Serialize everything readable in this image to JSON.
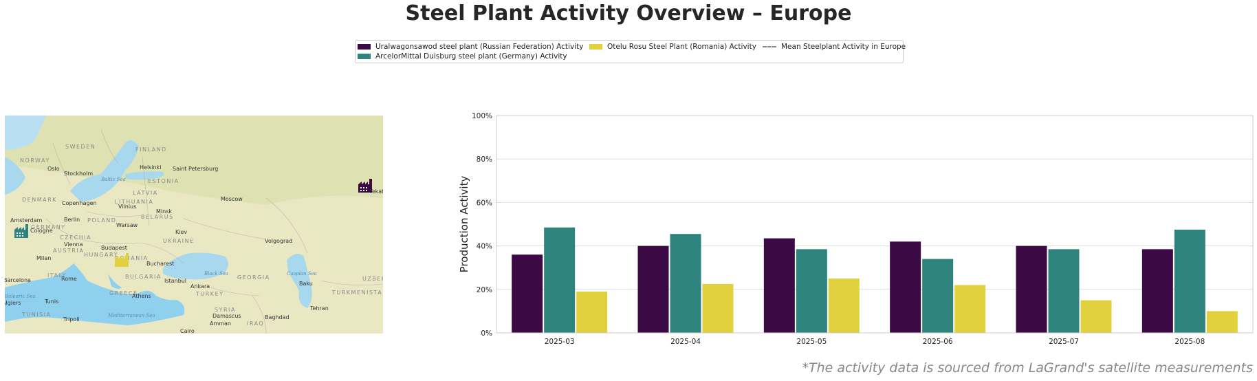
{
  "title": "Steel Plant Activity Overview – Europe",
  "footnote": "*The activity data is sourced from LaGrand's satellite measurements",
  "legend": {
    "items": [
      {
        "label": "Uralwagonsawod steel plant (Russian Federation) Activity",
        "color": "#3b0a45"
      },
      {
        "label": "ArcelorMittal Duisburg steel plant (Germany) Activity",
        "color": "#2e837c"
      },
      {
        "label": "Otelu Rosu Steel Plant (Romania) Activity",
        "color": "#e2d13e"
      },
      {
        "label": "Mean Steelplant Activity in Europe",
        "color": "#888888"
      }
    ]
  },
  "map": {
    "labels": {
      "countries": [
        "SWEDEN",
        "FINLAND",
        "NORWAY",
        "ESTONIA",
        "LATVIA",
        "DENMARK",
        "LITHUANIA",
        "BELARUS",
        "POLAND",
        "GERMANY",
        "CZECHIA",
        "AUSTRIA",
        "HUNGARY",
        "UKRAINE",
        "ROMANIA",
        "ITALY",
        "BULGARIA",
        "GREECE",
        "TURKEY",
        "GEORGIA",
        "SYRIA",
        "IRAQ",
        "TUNISIA",
        "TURKMENISTA",
        "UZBEK"
      ],
      "cities": [
        "Oslo",
        "Stockholm",
        "Helsinki",
        "Saint Petersburg",
        "Moscow",
        "Copenhagen",
        "Vilnius",
        "Minsk",
        "Amsterdam",
        "Berlin",
        "Warsaw",
        "Kiev",
        "Cologne",
        "Vienna",
        "Budapest",
        "Milan",
        "Bucharest",
        "Volgograd",
        "Rome",
        "Istanbul",
        "Ankara",
        "Baku",
        "Athens",
        "Tunis",
        "Tripoli",
        "Tehran",
        "Damascus",
        "Baghdad",
        "Amman",
        "Cairo",
        "Barcelona",
        "Algiers",
        "Yekaterinburg"
      ],
      "seas": [
        "Baltic Sea",
        "Black Sea",
        "Caspian Sea",
        "Mediterranean Sea",
        "Balearic Sea"
      ]
    },
    "markers": [
      {
        "name": "Uralwagonsawod",
        "color": "#3b0a45"
      },
      {
        "name": "ArcelorMittal Duisburg",
        "color": "#2e837c"
      },
      {
        "name": "Otelu Rosu",
        "color": "#e2d13e"
      }
    ]
  },
  "chart_data": {
    "type": "bar",
    "title": "Steel Plant Activity Overview – Europe",
    "ylabel": "Production Activity",
    "xlabel": "",
    "categories": [
      "2025-03",
      "2025-04",
      "2025-05",
      "2025-06",
      "2025-07",
      "2025-08"
    ],
    "ylim": [
      0,
      100
    ],
    "yticks": [
      "0%",
      "20%",
      "40%",
      "60%",
      "80%",
      "100%"
    ],
    "grid": "horizontal",
    "series": [
      {
        "name": "Uralwagonsawod steel plant (Russian Federation) Activity",
        "color": "#3b0a45",
        "values": [
          36,
          40,
          43.5,
          42,
          40,
          38.5
        ]
      },
      {
        "name": "ArcelorMittal Duisburg steel plant (Germany) Activity",
        "color": "#2e837c",
        "values": [
          48.5,
          45.5,
          38.5,
          34,
          38.5,
          47.5
        ]
      },
      {
        "name": "Otelu Rosu Steel Plant (Romania) Activity",
        "color": "#e2d13e",
        "values": [
          19,
          22.5,
          25,
          22,
          15,
          10
        ]
      }
    ],
    "mean_line": {
      "name": "Mean Steelplant Activity in Europe",
      "color": "#888888",
      "style": "dashed"
    }
  }
}
